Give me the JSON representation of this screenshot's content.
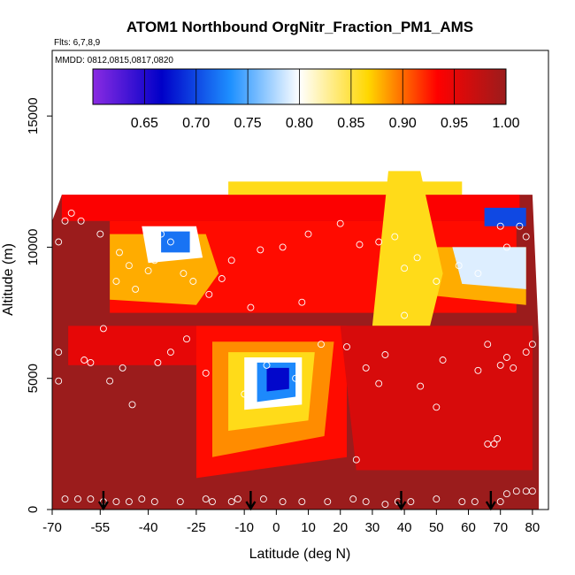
{
  "chart_data": {
    "type": "heatmap",
    "title": "ATOM1 Northbound OrgNitr_Fraction_PM1_AMS",
    "flights_note": "Flts: 6,7,8,9",
    "dates_note": "MMDD: 0812,0815,0817,0820",
    "xlabel": "Latitude (deg N)",
    "ylabel": "Altitude (m)",
    "xlim": [
      -70,
      85
    ],
    "ylim": [
      0,
      17500
    ],
    "x_ticks": [
      -70,
      -55,
      -40,
      -25,
      -10,
      0,
      10,
      20,
      30,
      40,
      50,
      60,
      70,
      80
    ],
    "y_ticks": [
      0,
      5000,
      10000,
      15000
    ],
    "colorbar": {
      "min": 0.6,
      "max": 1.0,
      "ticks": [
        "0.65",
        "0.70",
        "0.75",
        "0.80",
        "0.85",
        "0.90",
        "0.95",
        "1.00"
      ],
      "colors": [
        "#8a2be2",
        "#0000c8",
        "#1e90ff",
        "#ffffff",
        "#ffd700",
        "#ff0000",
        "#9b1c1c"
      ]
    },
    "background_color": "#9b1c1c",
    "regions": [
      {
        "name": "upper-warm",
        "value": 0.93
      },
      {
        "name": "mid-low-minimum",
        "value": 0.68
      },
      {
        "name": "upper-south-minimum",
        "value": 0.72
      },
      {
        "name": "upper-north-minimum",
        "value": 0.7
      }
    ],
    "markers_latitude": [
      -54,
      -8,
      39,
      67
    ]
  }
}
